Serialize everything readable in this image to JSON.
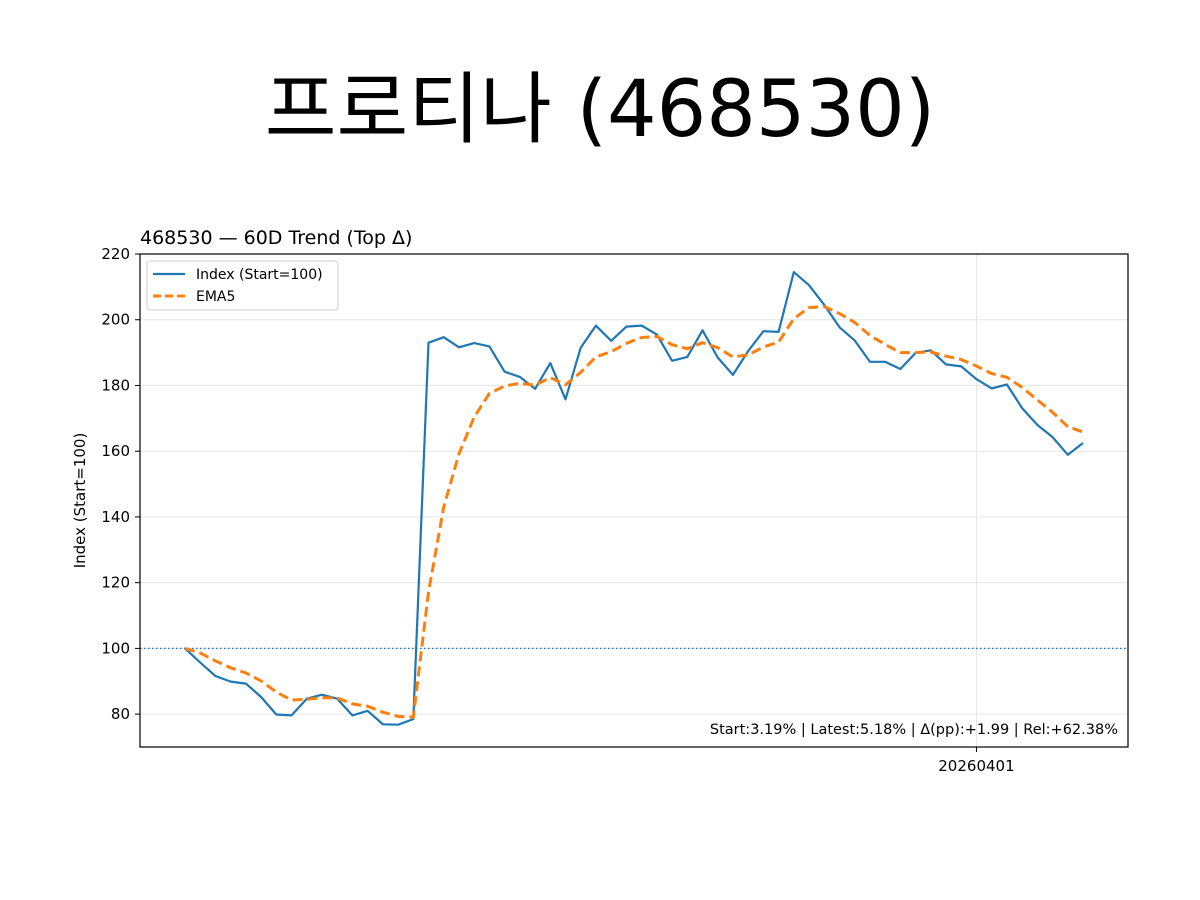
{
  "page_title": "프로티나 (468530)",
  "chart_data": {
    "type": "line",
    "title": "468530 — 60D Trend (Top Δ)",
    "xlabel": "",
    "ylabel": "Index (Start=100)",
    "ylim": [
      70,
      220
    ],
    "yticks": [
      80,
      100,
      120,
      140,
      160,
      180,
      200,
      220
    ],
    "xticks": [
      {
        "index": 52,
        "label": "20260401"
      }
    ],
    "grid": true,
    "legend_position": "top-left",
    "reference_line": {
      "y": 100,
      "style": "dotted",
      "color": "#1f77b4"
    },
    "series": [
      {
        "name": "Index (Start=100)",
        "color": "#1f77b4",
        "style": "solid",
        "values": [
          100,
          95.7,
          91.6,
          89.9,
          89.3,
          85.2,
          79.9,
          79.6,
          84.7,
          85.9,
          84.7,
          79.6,
          81,
          76.9,
          76.8,
          78.5,
          193,
          194.7,
          191.6,
          192.9,
          191.9,
          184.2,
          182.6,
          179,
          186.8,
          175.8,
          191.5,
          198.2,
          193.6,
          197.9,
          198.2,
          195.5,
          187.5,
          188.7,
          196.8,
          188.5,
          183.2,
          190.5,
          196.5,
          196.3,
          214.5,
          210.5,
          204.5,
          197.7,
          193.7,
          187.2,
          187.2,
          185,
          189.9,
          190.7,
          186.4,
          185.8,
          181.9,
          179.1,
          180.3,
          173.1,
          168,
          164.3,
          158.9,
          162.5
        ]
      },
      {
        "name": "EMA5",
        "color": "#ff7f0e",
        "style": "dashed",
        "values": [
          100,
          98.6,
          96.2,
          94.1,
          92.5,
          90.1,
          86.7,
          84.3,
          84.5,
          85,
          84.9,
          83.1,
          82.4,
          80.6,
          79.3,
          79.1,
          117.1,
          143,
          159.2,
          170.4,
          177.6,
          179.8,
          180.7,
          180.1,
          182.4,
          180.2,
          184,
          188.7,
          190.3,
          192.8,
          194.6,
          194.9,
          192.4,
          191.2,
          193,
          191.5,
          188.7,
          189.3,
          191.7,
          193.2,
          200.3,
          203.7,
          204,
          201.9,
          199.2,
          195.2,
          192.5,
          190,
          190,
          190.2,
          188.9,
          187.9,
          185.9,
          183.6,
          182.5,
          179.4,
          175.6,
          171.8,
          167.5,
          165.8
        ]
      }
    ],
    "annotation": "Start:3.19% | Latest:5.18% | Δ(pp):+1.99 | Rel:+62.38%"
  }
}
